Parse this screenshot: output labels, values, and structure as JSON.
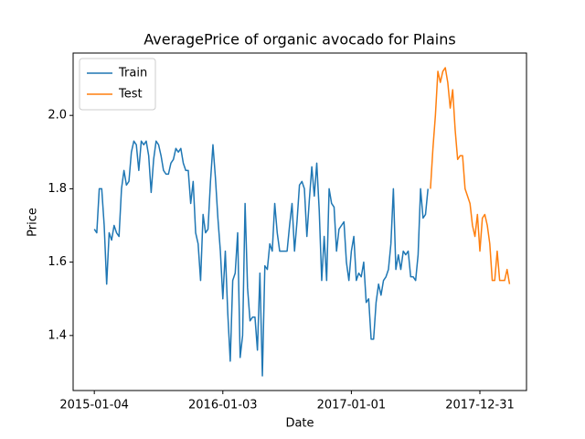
{
  "chart_data": {
    "type": "line",
    "title": "AveragePrice of organic avocado for Plains",
    "xlabel": "Date",
    "ylabel": "Price",
    "xlim": [
      "2014-11-05",
      "2018-05-12"
    ],
    "xticks": [
      "2015-01-04",
      "2016-01-03",
      "2017-01-01",
      "2017-12-31"
    ],
    "ylim": [
      1.25,
      2.17
    ],
    "yticks": [
      1.4,
      1.6,
      1.8,
      {
        "value": 2,
        "label": "2.0"
      }
    ],
    "legend": "upper left",
    "series": [
      {
        "name": "Train",
        "color": "#1f77b4",
        "x": [
          "2015-01-04",
          "2015-01-11",
          "2015-01-18",
          "2015-01-25",
          "2015-02-01",
          "2015-02-08",
          "2015-02-15",
          "2015-02-22",
          "2015-03-01",
          "2015-03-08",
          "2015-03-15",
          "2015-03-22",
          "2015-03-29",
          "2015-04-05",
          "2015-04-12",
          "2015-04-19",
          "2015-04-26",
          "2015-05-03",
          "2015-05-10",
          "2015-05-17",
          "2015-05-24",
          "2015-05-31",
          "2015-06-07",
          "2015-06-14",
          "2015-06-21",
          "2015-06-28",
          "2015-07-05",
          "2015-07-12",
          "2015-07-19",
          "2015-07-26",
          "2015-08-02",
          "2015-08-09",
          "2015-08-16",
          "2015-08-23",
          "2015-08-30",
          "2015-09-06",
          "2015-09-13",
          "2015-09-20",
          "2015-09-27",
          "2015-10-04",
          "2015-10-11",
          "2015-10-18",
          "2015-10-25",
          "2015-11-01",
          "2015-11-08",
          "2015-11-15",
          "2015-11-22",
          "2015-11-29",
          "2015-12-06",
          "2015-12-13",
          "2015-12-20",
          "2015-12-27",
          "2016-01-03",
          "2016-01-10",
          "2016-01-17",
          "2016-01-24",
          "2016-01-31",
          "2016-02-07",
          "2016-02-14",
          "2016-02-21",
          "2016-02-28",
          "2016-03-06",
          "2016-03-13",
          "2016-03-20",
          "2016-03-27",
          "2016-04-03",
          "2016-04-10",
          "2016-04-17",
          "2016-04-24",
          "2016-05-01",
          "2016-05-08",
          "2016-05-15",
          "2016-05-22",
          "2016-05-29",
          "2016-06-05",
          "2016-06-12",
          "2016-06-19",
          "2016-06-26",
          "2016-07-03",
          "2016-07-10",
          "2016-07-17",
          "2016-07-24",
          "2016-07-31",
          "2016-08-07",
          "2016-08-14",
          "2016-08-21",
          "2016-08-28",
          "2016-09-04",
          "2016-09-11",
          "2016-09-18",
          "2016-09-25",
          "2016-10-02",
          "2016-10-09",
          "2016-10-16",
          "2016-10-23",
          "2016-10-30",
          "2016-11-06",
          "2016-11-13",
          "2016-11-20",
          "2016-11-27",
          "2016-12-04",
          "2016-12-11",
          "2016-12-18",
          "2016-12-25",
          "2017-01-01",
          "2017-01-08",
          "2017-01-15",
          "2017-01-22",
          "2017-01-29",
          "2017-02-05",
          "2017-02-12",
          "2017-02-19",
          "2017-02-26",
          "2017-03-05",
          "2017-03-12",
          "2017-03-19",
          "2017-03-26",
          "2017-04-02",
          "2017-04-09",
          "2017-04-16",
          "2017-04-23",
          "2017-04-30",
          "2017-05-07",
          "2017-05-14",
          "2017-05-21",
          "2017-05-28",
          "2017-06-04",
          "2017-06-11",
          "2017-06-18",
          "2017-06-25",
          "2017-07-02",
          "2017-07-09",
          "2017-07-16",
          "2017-07-23",
          "2017-07-30",
          "2017-08-06"
        ],
        "values": [
          1.69,
          1.68,
          1.8,
          1.8,
          1.7,
          1.54,
          1.68,
          1.66,
          1.7,
          1.68,
          1.67,
          1.8,
          1.85,
          1.81,
          1.82,
          1.9,
          1.93,
          1.92,
          1.85,
          1.93,
          1.92,
          1.93,
          1.89,
          1.79,
          1.88,
          1.93,
          1.92,
          1.89,
          1.85,
          1.84,
          1.84,
          1.87,
          1.88,
          1.91,
          1.9,
          1.91,
          1.87,
          1.85,
          1.85,
          1.76,
          1.82,
          1.68,
          1.65,
          1.55,
          1.73,
          1.68,
          1.69,
          1.82,
          1.92,
          1.83,
          1.72,
          1.63,
          1.5,
          1.63,
          1.46,
          1.33,
          1.55,
          1.57,
          1.68,
          1.34,
          1.4,
          1.76,
          1.53,
          1.44,
          1.45,
          1.45,
          1.36,
          1.57,
          1.29,
          1.59,
          1.58,
          1.65,
          1.63,
          1.76,
          1.68,
          1.63,
          1.63,
          1.63,
          1.63,
          1.7,
          1.76,
          1.63,
          1.71,
          1.81,
          1.82,
          1.8,
          1.67,
          1.77,
          1.86,
          1.78,
          1.87,
          1.74,
          1.55,
          1.67,
          1.55,
          1.8,
          1.76,
          1.75,
          1.63,
          1.69,
          1.7,
          1.71,
          1.6,
          1.55,
          1.63,
          1.67,
          1.55,
          1.57,
          1.56,
          1.6,
          1.49,
          1.5,
          1.39,
          1.39,
          1.49,
          1.54,
          1.51,
          1.55,
          1.56,
          1.58,
          1.65,
          1.8,
          1.58,
          1.62,
          1.58,
          1.63,
          1.62,
          1.63,
          1.56,
          1.56,
          1.55,
          1.62,
          1.8,
          1.72,
          1.73,
          1.8
        ]
      },
      {
        "name": "Test",
        "color": "#ff7f0e",
        "x": [
          "2017-08-13",
          "2017-08-20",
          "2017-08-27",
          "2017-09-03",
          "2017-09-10",
          "2017-09-17",
          "2017-09-24",
          "2017-10-01",
          "2017-10-08",
          "2017-10-15",
          "2017-10-22",
          "2017-10-29",
          "2017-11-05",
          "2017-11-12",
          "2017-11-19",
          "2017-11-26",
          "2017-12-03",
          "2017-12-10",
          "2017-12-17",
          "2017-12-24",
          "2017-12-31",
          "2018-01-07",
          "2018-01-14",
          "2018-01-21",
          "2018-01-28",
          "2018-02-04",
          "2018-02-11",
          "2018-02-18",
          "2018-02-25",
          "2018-03-04",
          "2018-03-11",
          "2018-03-18",
          "2018-03-25"
        ],
        "values": [
          1.8,
          1.91,
          2.0,
          2.12,
          2.09,
          2.12,
          2.13,
          2.09,
          2.02,
          2.07,
          1.96,
          1.88,
          1.89,
          1.89,
          1.8,
          1.78,
          1.76,
          1.7,
          1.67,
          1.73,
          1.63,
          1.72,
          1.73,
          1.7,
          1.65,
          1.55,
          1.55,
          1.63,
          1.55,
          1.55,
          1.55,
          1.58,
          1.54
        ]
      }
    ]
  }
}
